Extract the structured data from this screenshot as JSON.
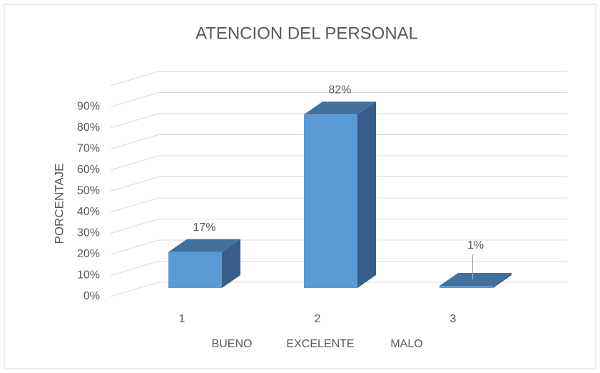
{
  "chart_data": {
    "type": "bar3d",
    "title": "ATENCION DEL PERSONAL",
    "y_label": "PORCENTAJE",
    "categories": [
      "1",
      "2",
      "3"
    ],
    "category_names": [
      "BUENO",
      "EXCELENTE",
      "MALO"
    ],
    "values": [
      17,
      82,
      1
    ],
    "value_labels": [
      "17%",
      "82%",
      "1%"
    ],
    "color": "#5b9bd5",
    "ylim": [
      0,
      100
    ],
    "yticks": [
      {
        "value": 0,
        "label": "0%"
      },
      {
        "value": 10,
        "label": "10%"
      },
      {
        "value": 20,
        "label": "20%"
      },
      {
        "value": 30,
        "label": "30%"
      },
      {
        "value": 40,
        "label": "40%"
      },
      {
        "value": 50,
        "label": "50%"
      },
      {
        "value": 60,
        "label": "60%"
      },
      {
        "value": 70,
        "label": "70%"
      },
      {
        "value": 80,
        "label": "80%"
      },
      {
        "value": 90,
        "label": "90%"
      }
    ],
    "grid": true
  }
}
